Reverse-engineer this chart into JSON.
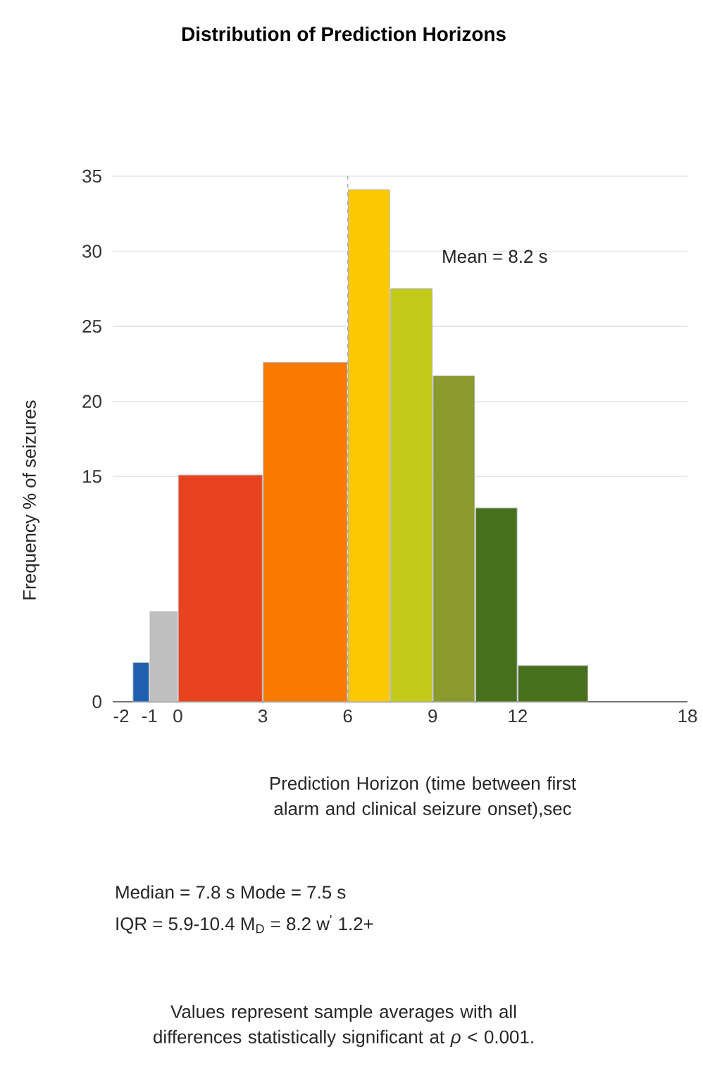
{
  "chart_data": {
    "type": "histogram",
    "title": "Distribution of Prediction Horizons",
    "xlabel": "Prediction Horizon (time between first alarm and clinical seizure onset),sec",
    "ylabel": "Frequency % of seizures",
    "bins": [
      -1.6,
      -1,
      0,
      3,
      6,
      7.5,
      9,
      10.5,
      12,
      14.5
    ],
    "values": [
      2.6,
      6.0,
      15.1,
      22.6,
      34.1,
      27.5,
      21.7,
      12.9,
      2.4
    ],
    "colors": [
      "#1f5fb0",
      "#c0c0c0",
      "#e8431e",
      "#f97a00",
      "#fcc800",
      "#c3cb1a",
      "#8a9a2c",
      "#47701d",
      "#47701d"
    ],
    "xlim": [
      -2.3,
      18
    ],
    "xticks": [
      -2,
      -1,
      0,
      3,
      6,
      9,
      12,
      18
    ],
    "ylim": [
      0,
      35
    ],
    "yticks": [
      0,
      15,
      20,
      25,
      30,
      35
    ],
    "grid": "y",
    "ref_lines": [
      {
        "axis": "x",
        "value": 6,
        "color": "#b0b0b0",
        "line_style": "dashed"
      }
    ],
    "annotations": [
      "Mean = 8.2 s",
      "Median = 7.8 s    Mode = 7.5 s",
      "IQR = 5.9-10.4    M$_{D}$ = 8.2    w$^{'}$ 1.2+",
      "Values represent sample averages with all differences statistically significant at *ρ* < 0.001."
    ]
  }
}
